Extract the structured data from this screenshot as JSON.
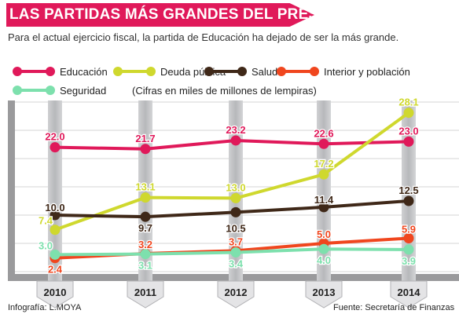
{
  "header": {
    "title": "LAS PARTIDAS MÁS GRANDES DEL PRESUPUESTO",
    "subtitle": "Para el actual ejercicio fiscal, la partida de Educación  ha dejado de ser la más grande.",
    "note": "(Cifras en miles de millones de lempiras)"
  },
  "footer": {
    "credit": "Infografía: L.MOYA",
    "source": "Fuente: Secretaría de Finanzas"
  },
  "chart_data": {
    "type": "line",
    "x": [
      "2010",
      "2011",
      "2012",
      "2013",
      "2014"
    ],
    "ylim": [
      0,
      30
    ],
    "grid": true,
    "legend": "top",
    "series": [
      {
        "name": "Educación",
        "color": "#e0195a",
        "values": [
          22.0,
          21.7,
          23.2,
          22.6,
          23.0
        ],
        "labels": [
          "22.0",
          "21.7",
          "23.2",
          "22.6",
          "23.0"
        ]
      },
      {
        "name": "Deuda pública",
        "color": "#cfd82e",
        "values": [
          7.4,
          13.1,
          13.0,
          17.2,
          28.1
        ],
        "labels": [
          "7.4",
          "13.1",
          "13.0",
          "17.2",
          "28.1"
        ]
      },
      {
        "name": "Salud",
        "color": "#3f2818",
        "values": [
          10.0,
          9.7,
          10.5,
          11.4,
          12.5
        ],
        "labels": [
          "10.0",
          "9.7",
          "10.5",
          "11.4",
          "12.5"
        ]
      },
      {
        "name": "Interior y población",
        "color": "#f0461e",
        "values": [
          2.4,
          3.2,
          3.7,
          5.0,
          5.9
        ],
        "labels": [
          "2.4",
          "3.2",
          "3.7",
          "5.0",
          "5.9"
        ]
      },
      {
        "name": "Seguridad",
        "color": "#7de0ad",
        "values": [
          3.0,
          3.1,
          3.4,
          4.0,
          3.9
        ],
        "labels": [
          "3.0",
          "3.1",
          "3.4",
          "4.0",
          "3.9"
        ]
      }
    ]
  }
}
